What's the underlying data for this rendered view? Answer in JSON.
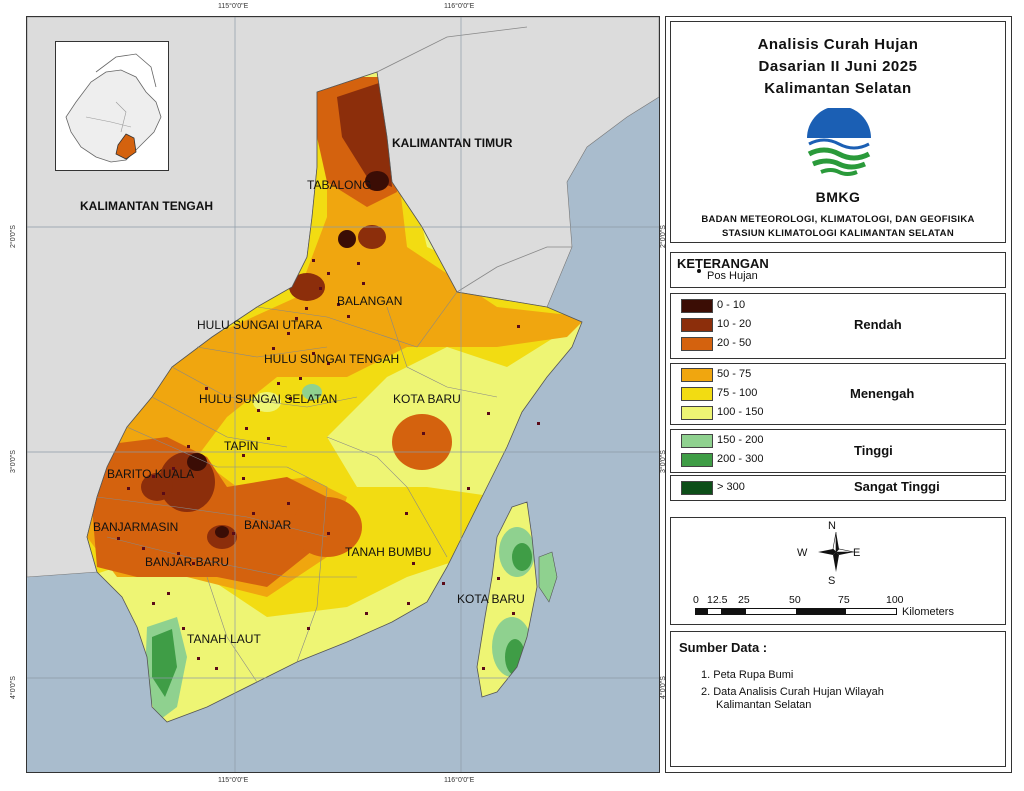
{
  "title": {
    "line1": "Analisis Curah Hujan",
    "line2": "Dasarian II Juni 2025",
    "line3": "Kalimantan Selatan"
  },
  "logo_text": "BMKG",
  "org": {
    "line1": "BADAN METEOROLOGI, KLIMATOLOGI, DAN GEOFISIKA",
    "line2": "STASIUN KLIMATOLOGI KALIMANTAN SELATAN"
  },
  "legend": {
    "heading": "KETERANGAN",
    "pos_hujan": "Pos Hujan",
    "classes": [
      {
        "label": "0 - 10",
        "color": "#3b0d05"
      },
      {
        "label": "10 - 20",
        "color": "#8c2e0b"
      },
      {
        "label": "20 - 50",
        "color": "#d4620e"
      },
      {
        "label": "50 - 75",
        "color": "#f0a60f"
      },
      {
        "label": "75 - 100",
        "color": "#f2dc12"
      },
      {
        "label": "100 - 150",
        "color": "#eef574"
      },
      {
        "label": "150 - 200",
        "color": "#8fd18f"
      },
      {
        "label": "200 - 300",
        "color": "#3f9d46"
      },
      {
        "label": "> 300",
        "color": "#0d4e18"
      }
    ],
    "groups": {
      "rendah": "Rendah",
      "menengah": "Menengah",
      "tinggi": "Tinggi",
      "sangat_tinggi": "Sangat Tinggi"
    }
  },
  "compass": {
    "n": "N",
    "s": "S",
    "e": "E",
    "w": "W"
  },
  "scale": {
    "ticks": [
      "0",
      "12.5",
      "25",
      "50",
      "75",
      "100"
    ],
    "unit": "Kilometers"
  },
  "sources": {
    "heading": "Sumber Data :",
    "item1": "1. Peta Rupa Bumi",
    "item2a": "2. Data Analisis Curah Hujan Wilayah",
    "item2b": "Kalimantan Selatan"
  },
  "map": {
    "provinces": {
      "tengah": "KALIMANTAN TENGAH",
      "timur": "KALIMANTAN TIMUR"
    },
    "regencies": {
      "tabalong": "TABALONG",
      "balangan": "BALANGAN",
      "hsu": "HULU SUNGAI UTARA",
      "hst": "HULU SUNGAI TENGAH",
      "hss": "HULU SUNGAI SELATAN",
      "kotabaru1": "KOTA BARU",
      "tapin": "TAPIN",
      "baritokuala": "BARITO KUALA",
      "banjarmasin": "BANJARMASIN",
      "banjar": "BANJAR",
      "banjarbaru": "BANJAR BARU",
      "tanahbumbu": "TANAH BUMBU",
      "kotabaru2": "KOTA BARU",
      "tanahlaut": "TANAH LAUT"
    },
    "coords": {
      "lon1": "115°0'0\"E",
      "lon2": "116°0'0\"E",
      "lat2": "2°0'0\"S",
      "lat3": "3°0'0\"S",
      "lat4": "4°0'0\"S"
    },
    "colors": {
      "sea": "#a9bccd",
      "land": "#dcdcdc"
    }
  }
}
